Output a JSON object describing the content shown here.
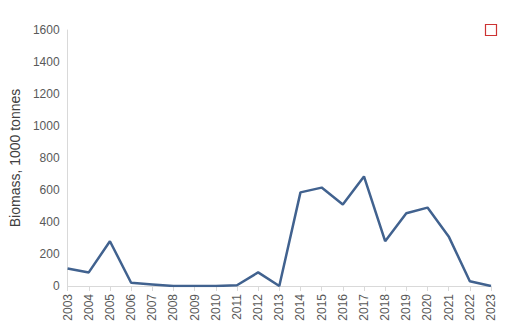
{
  "chart_data": {
    "type": "line",
    "y_label": "Biomass, 1000 tonnes",
    "categories": [
      "2003",
      "2004",
      "2005",
      "2006",
      "2007",
      "2008",
      "2009",
      "2010",
      "2011",
      "2012",
      "2013",
      "2014",
      "2015",
      "2016",
      "2017",
      "2018",
      "2019",
      "2020",
      "2021",
      "2022",
      "2023"
    ],
    "series": [
      {
        "type": "line",
        "color": "#41628f",
        "values": [
          110,
          85,
          280,
          20,
          10,
          0,
          0,
          0,
          5,
          85,
          0,
          585,
          615,
          510,
          685,
          280,
          455,
          490,
          310,
          30,
          0
        ]
      },
      {
        "type": "scatter",
        "color": "#c00000",
        "marker": "star",
        "values": [
          null,
          null,
          null,
          null,
          null,
          null,
          null,
          null,
          null,
          null,
          null,
          null,
          null,
          null,
          null,
          null,
          null,
          null,
          null,
          null,
          1600
        ]
      }
    ],
    "ylim": [
      0,
      1600
    ],
    "yticks": [
      0,
      200,
      400,
      600,
      800,
      1000,
      1200,
      1400,
      1600
    ],
    "grid": false
  }
}
